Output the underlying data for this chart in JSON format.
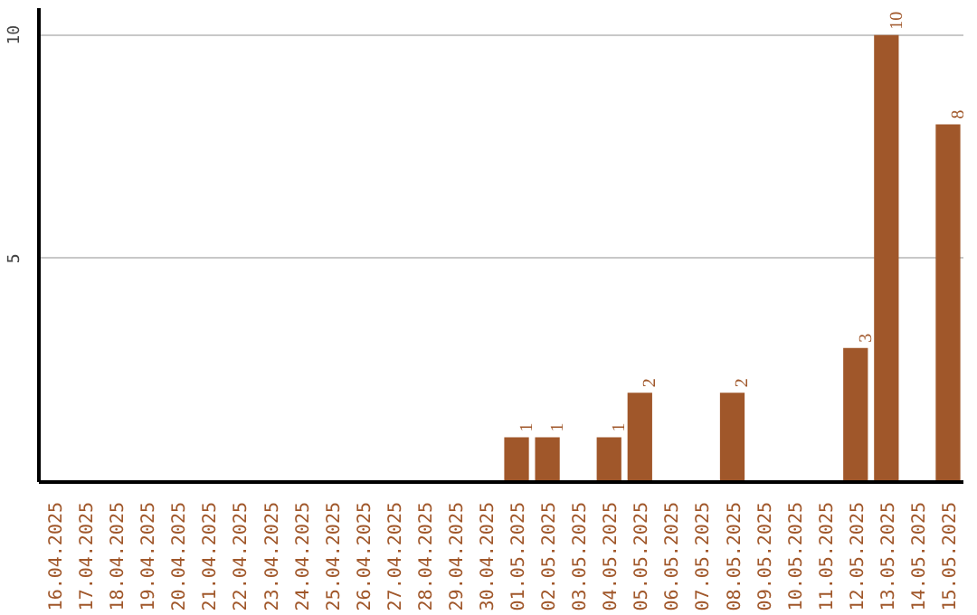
{
  "chart_data": {
    "type": "bar",
    "categories": [
      "16.04.2025",
      "17.04.2025",
      "18.04.2025",
      "19.04.2025",
      "20.04.2025",
      "21.04.2025",
      "22.04.2025",
      "23.04.2025",
      "24.04.2025",
      "25.04.2025",
      "26.04.2025",
      "27.04.2025",
      "28.04.2025",
      "29.04.2025",
      "30.04.2025",
      "01.05.2025",
      "02.05.2025",
      "03.05.2025",
      "04.05.2025",
      "05.05.2025",
      "06.05.2025",
      "07.05.2025",
      "08.05.2025",
      "09.05.2025",
      "10.05.2025",
      "11.05.2025",
      "12.05.2025",
      "13.05.2025",
      "14.05.2025",
      "15.05.2025"
    ],
    "values": [
      0,
      0,
      0,
      0,
      0,
      0,
      0,
      0,
      0,
      0,
      0,
      0,
      0,
      0,
      0,
      1,
      1,
      0,
      1,
      2,
      0,
      0,
      2,
      0,
      0,
      0,
      3,
      10,
      0,
      8
    ],
    "value_labels": [
      null,
      null,
      null,
      null,
      null,
      null,
      null,
      null,
      null,
      null,
      null,
      null,
      null,
      null,
      null,
      "1",
      "1",
      null,
      "1",
      "2",
      null,
      null,
      "2",
      null,
      null,
      null,
      "3",
      "10",
      null,
      "8"
    ],
    "color": "#a0572a",
    "ylim": [
      0,
      10.6
    ],
    "yticks": [
      5,
      10
    ],
    "grid": "y"
  }
}
